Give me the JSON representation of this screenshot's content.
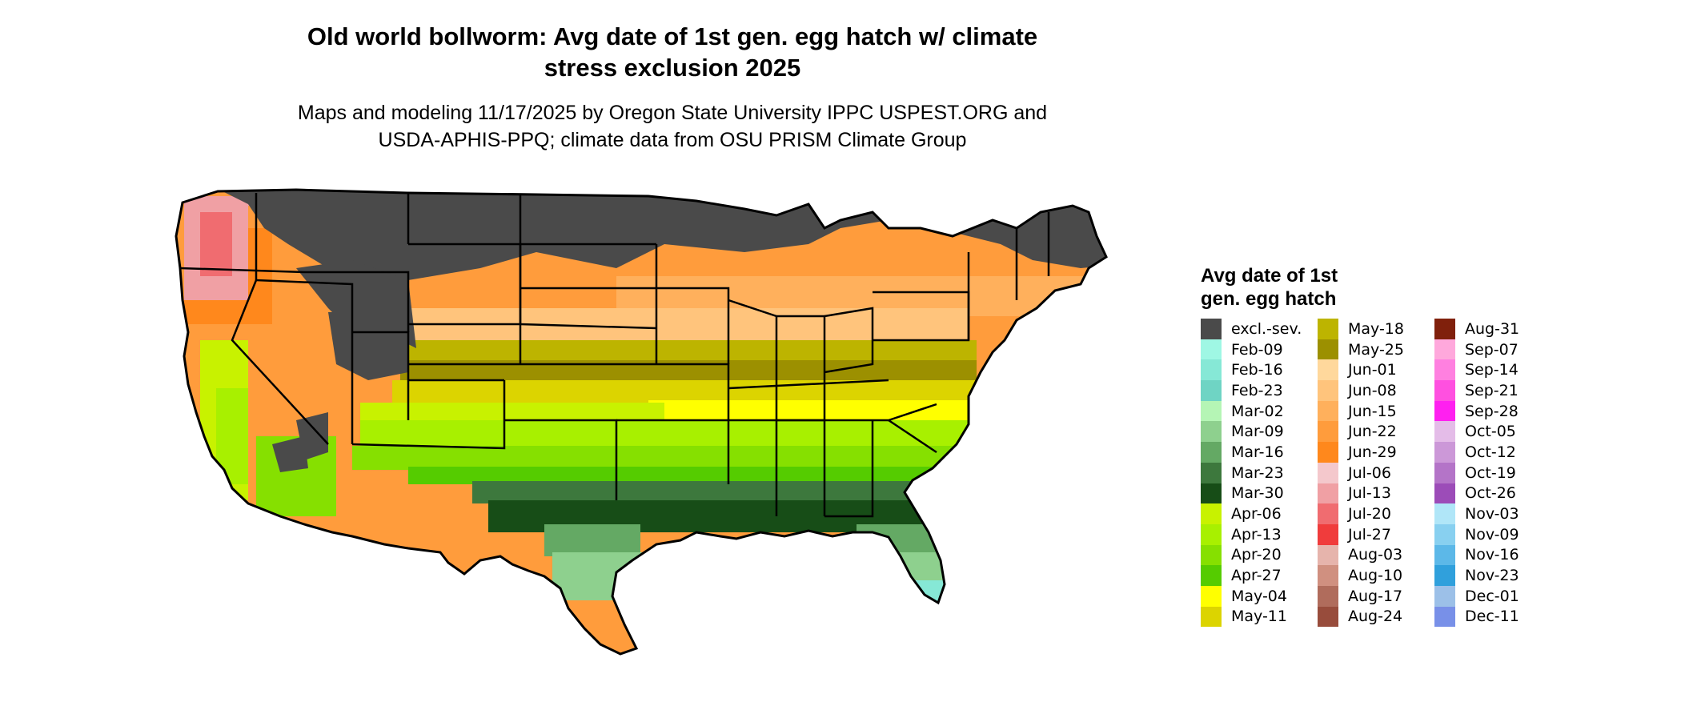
{
  "title_line1": "Old world bollworm: Avg date of 1st gen. egg hatch w/ climate",
  "title_line2": "stress exclusion 2025",
  "subtitle_line1": "Maps and modeling 11/17/2025 by Oregon State University IPPC USPEST.ORG and",
  "subtitle_line2": "USDA-APHIS-PPQ; climate data from OSU PRISM Climate Group",
  "legend": {
    "title_line1": "Avg date of 1st",
    "title_line2": "gen. egg hatch",
    "items": [
      {
        "label": "excl.-sev.",
        "color": "#4a4a4a"
      },
      {
        "label": "Feb-09",
        "color": "#9ff7e4"
      },
      {
        "label": "Feb-16",
        "color": "#86e8d6"
      },
      {
        "label": "Feb-23",
        "color": "#6fd4c4"
      },
      {
        "label": "Mar-02",
        "color": "#b5f5b5"
      },
      {
        "label": "Mar-09",
        "color": "#8ed08e"
      },
      {
        "label": "Mar-16",
        "color": "#64a964"
      },
      {
        "label": "Mar-23",
        "color": "#3d783d"
      },
      {
        "label": "Mar-30",
        "color": "#174d17"
      },
      {
        "label": "Apr-06",
        "color": "#c8f200"
      },
      {
        "label": "Apr-13",
        "color": "#a8f000"
      },
      {
        "label": "Apr-20",
        "color": "#86e000"
      },
      {
        "label": "Apr-27",
        "color": "#55cc00"
      },
      {
        "label": "May-04",
        "color": "#ffff00"
      },
      {
        "label": "May-11",
        "color": "#dcd400"
      },
      {
        "label": "May-18",
        "color": "#bdb400"
      },
      {
        "label": "May-25",
        "color": "#9c9000"
      },
      {
        "label": "Jun-01",
        "color": "#ffd89c"
      },
      {
        "label": "Jun-08",
        "color": "#ffc47c"
      },
      {
        "label": "Jun-15",
        "color": "#ffb05c"
      },
      {
        "label": "Jun-22",
        "color": "#ff9c3c"
      },
      {
        "label": "Jun-29",
        "color": "#ff881c"
      },
      {
        "label": "Jul-06",
        "color": "#f4c8cc"
      },
      {
        "label": "Jul-13",
        "color": "#f0a0a4"
      },
      {
        "label": "Jul-20",
        "color": "#f06c70"
      },
      {
        "label": "Jul-27",
        "color": "#f03c3c"
      },
      {
        "label": "Aug-03",
        "color": "#e6b4ac"
      },
      {
        "label": "Aug-10",
        "color": "#d09080"
      },
      {
        "label": "Aug-17",
        "color": "#b06c5c"
      },
      {
        "label": "Aug-24",
        "color": "#984c3c"
      },
      {
        "label": "Aug-31",
        "color": "#80200c"
      },
      {
        "label": "Sep-07",
        "color": "#ffa8dc"
      },
      {
        "label": "Sep-14",
        "color": "#ff80e0"
      },
      {
        "label": "Sep-21",
        "color": "#ff50e0"
      },
      {
        "label": "Sep-28",
        "color": "#ff20f0"
      },
      {
        "label": "Oct-05",
        "color": "#e4bce8"
      },
      {
        "label": "Oct-12",
        "color": "#cc98d8"
      },
      {
        "label": "Oct-19",
        "color": "#b474c8"
      },
      {
        "label": "Oct-26",
        "color": "#9c4cb8"
      },
      {
        "label": "Nov-03",
        "color": "#b0e6f8"
      },
      {
        "label": "Nov-09",
        "color": "#88d0f0"
      },
      {
        "label": "Nov-16",
        "color": "#5cb8e8"
      },
      {
        "label": "Nov-23",
        "color": "#30a0dc"
      },
      {
        "label": "Dec-01",
        "color": "#9cc0e8"
      },
      {
        "label": "Dec-11",
        "color": "#7890e8"
      }
    ]
  }
}
